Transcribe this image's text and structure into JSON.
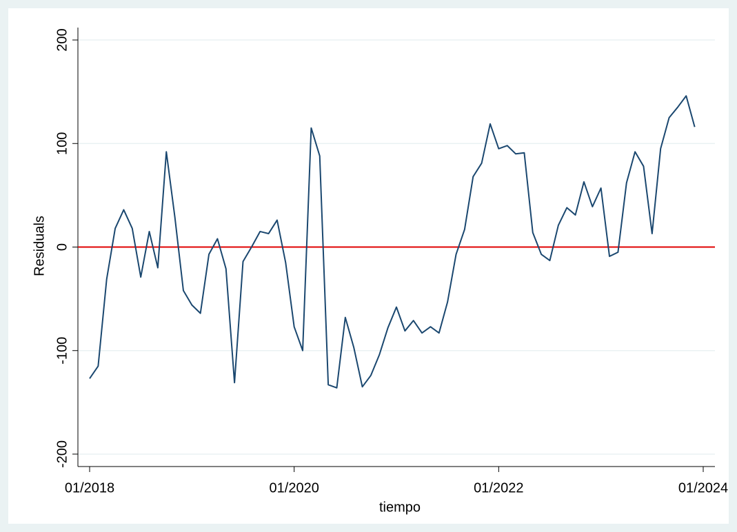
{
  "chart_data": {
    "type": "line",
    "x_label": "tiempo",
    "y_label": "Residuals",
    "x": [
      "01/2018",
      "02/2018",
      "03/2018",
      "04/2018",
      "05/2018",
      "06/2018",
      "07/2018",
      "08/2018",
      "09/2018",
      "10/2018",
      "11/2018",
      "12/2018",
      "01/2019",
      "02/2019",
      "03/2019",
      "04/2019",
      "05/2019",
      "06/2019",
      "07/2019",
      "08/2019",
      "09/2019",
      "10/2019",
      "11/2019",
      "12/2019",
      "01/2020",
      "02/2020",
      "03/2020",
      "04/2020",
      "05/2020",
      "06/2020",
      "07/2020",
      "08/2020",
      "09/2020",
      "10/2020",
      "11/2020",
      "12/2020",
      "01/2021",
      "02/2021",
      "03/2021",
      "04/2021",
      "05/2021",
      "06/2021",
      "07/2021",
      "08/2021",
      "09/2021",
      "10/2021",
      "11/2021",
      "12/2021",
      "01/2022",
      "02/2022",
      "03/2022",
      "04/2022",
      "05/2022",
      "06/2022",
      "07/2022",
      "08/2022",
      "09/2022",
      "10/2022",
      "11/2022",
      "12/2022",
      "01/2023",
      "02/2023",
      "03/2023",
      "04/2023",
      "05/2023",
      "06/2023",
      "07/2023",
      "08/2023",
      "09/2023",
      "10/2023",
      "11/2023",
      "12/2023"
    ],
    "series": [
      {
        "name": "Residuals",
        "color": "#1a476f",
        "values": [
          -127,
          -115,
          -31,
          18,
          36,
          18,
          -29,
          15,
          -20,
          92,
          29,
          -42,
          -56,
          -64,
          -7,
          8,
          -21,
          -131,
          -14,
          0,
          15,
          13,
          26,
          -15,
          -77,
          -100,
          115,
          88,
          -133,
          -136,
          -68,
          -97,
          -135,
          -124,
          -104,
          -78,
          -58,
          -81,
          -71,
          -83,
          -77,
          -83,
          -53,
          -7,
          17,
          68,
          81,
          119,
          95,
          98,
          90,
          91,
          14,
          -7,
          -13,
          21,
          38,
          31,
          63,
          39,
          57,
          -9,
          -5,
          62,
          92,
          78,
          13,
          95,
          125,
          135,
          146,
          116
        ]
      }
    ],
    "xlim": [
      "01/2018",
      "01/2024"
    ],
    "xticks": [
      "01/2018",
      "01/2020",
      "01/2022",
      "01/2024"
    ],
    "ylim": [
      -212,
      212
    ],
    "yticks": [
      -200,
      -100,
      0,
      100,
      200
    ],
    "grid": true,
    "reference_line": {
      "value": 0,
      "color": "#e00000"
    }
  }
}
